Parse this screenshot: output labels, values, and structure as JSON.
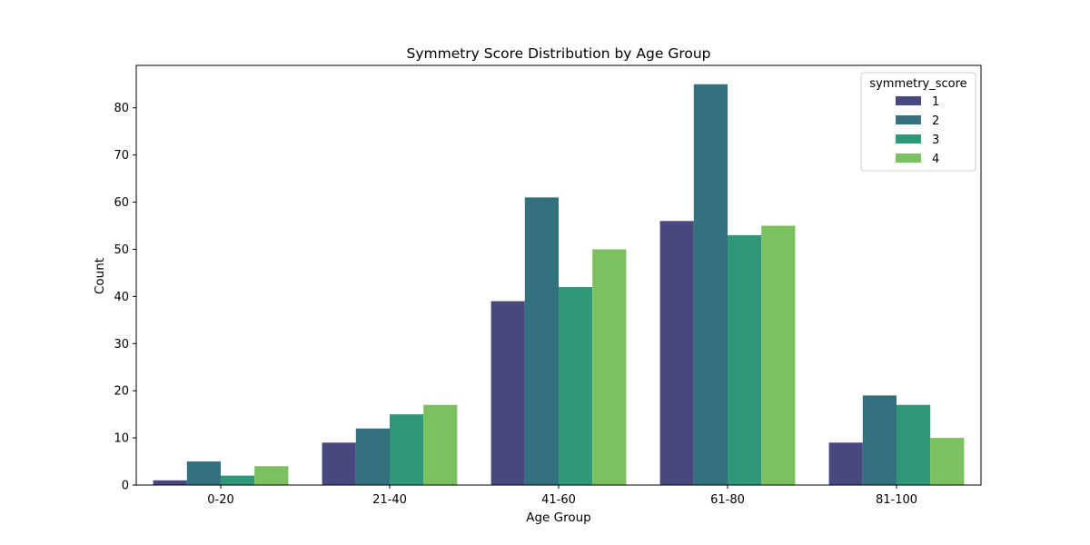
{
  "chart_data": {
    "type": "bar",
    "title": "Symmetry Score Distribution by Age Group",
    "xlabel": "Age Group",
    "ylabel": "Count",
    "categories": [
      "0-20",
      "21-40",
      "41-60",
      "61-80",
      "81-100"
    ],
    "series": [
      {
        "name": "1",
        "color": "#46487e",
        "values": [
          1,
          9,
          39,
          56,
          9
        ]
      },
      {
        "name": "2",
        "color": "#33717f",
        "values": [
          5,
          12,
          61,
          85,
          19
        ]
      },
      {
        "name": "3",
        "color": "#30977a",
        "values": [
          2,
          15,
          42,
          53,
          17
        ]
      },
      {
        "name": "4",
        "color": "#7cc160",
        "values": [
          4,
          17,
          50,
          55,
          10
        ]
      }
    ],
    "ylim": [
      0,
      89
    ],
    "yticks": [
      0,
      10,
      20,
      30,
      40,
      50,
      60,
      70,
      80
    ],
    "legend": {
      "title": "symmetry_score",
      "placement": "top-right"
    },
    "grid": false
  }
}
